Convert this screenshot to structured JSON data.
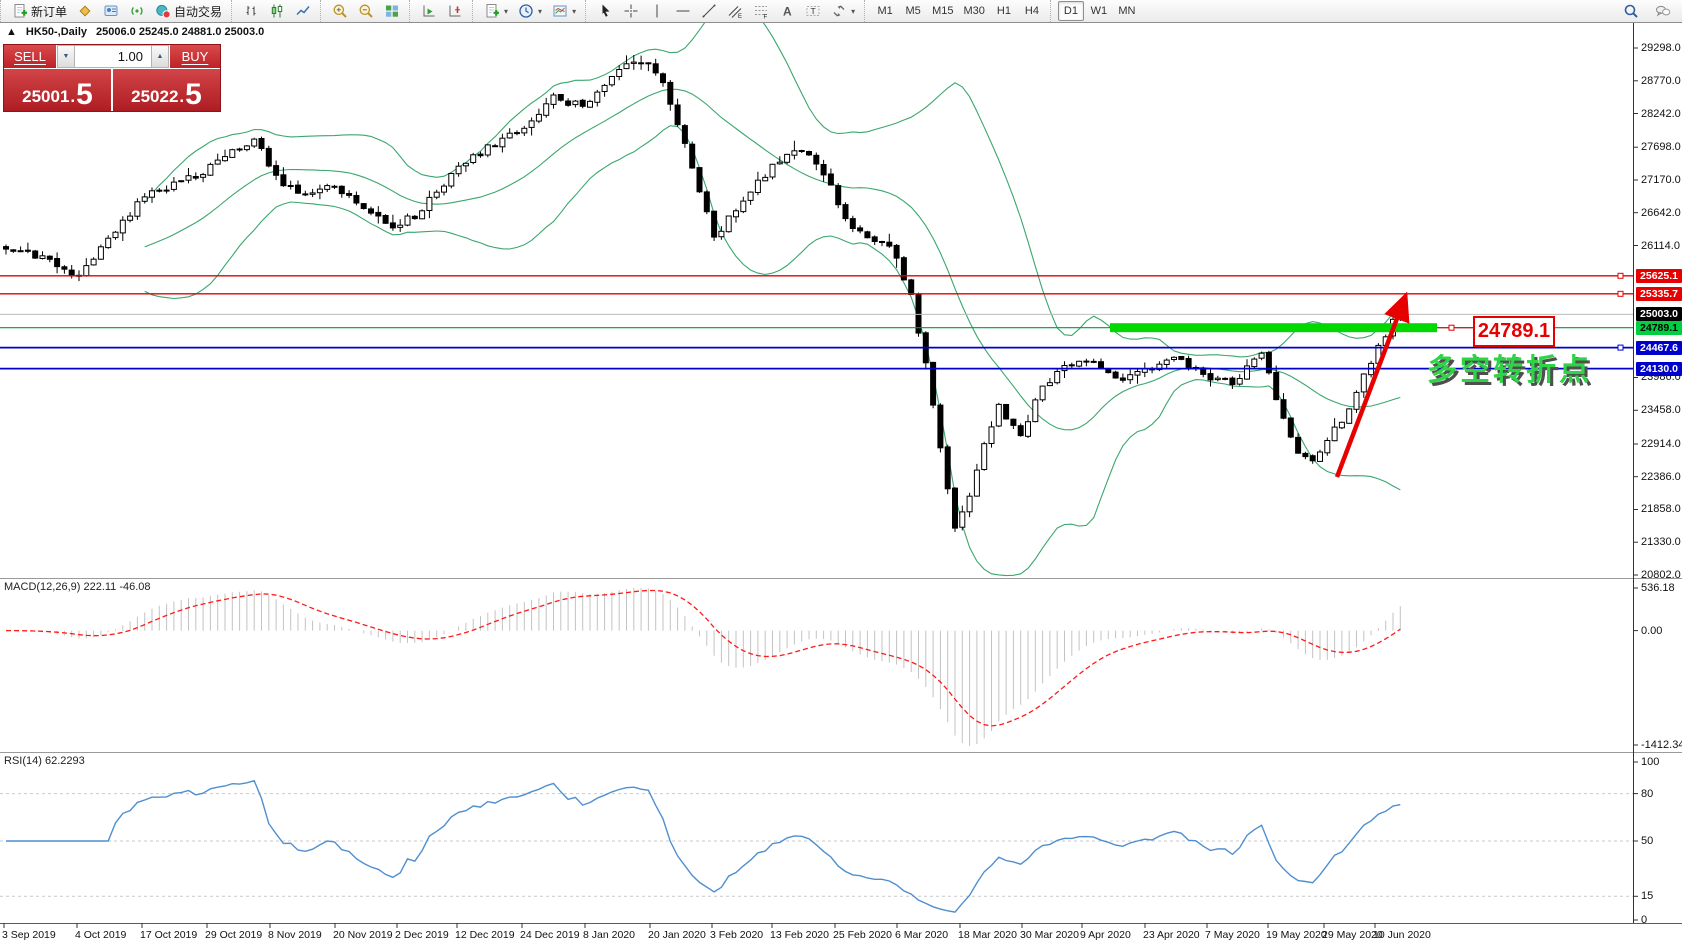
{
  "toolbar": {
    "groups": [
      {
        "items": [
          {
            "name": "new-order",
            "icon": "doc-plus",
            "label": "新订单"
          },
          {
            "name": "market-watch",
            "icon": "market"
          },
          {
            "name": "data-window",
            "icon": "terminal"
          },
          {
            "name": "signals",
            "icon": "signals"
          },
          {
            "name": "auto-trading",
            "icon": "autotrade",
            "label": "自动交易"
          }
        ]
      },
      {
        "items": [
          {
            "name": "bar-chart-mode",
            "icon": "bars"
          },
          {
            "name": "candlestick-mode",
            "icon": "candles"
          },
          {
            "name": "line-chart-mode",
            "icon": "linechart"
          }
        ]
      },
      {
        "items": [
          {
            "name": "zoom-in",
            "icon": "zoom-in"
          },
          {
            "name": "zoom-out",
            "icon": "zoom-out"
          },
          {
            "name": "tile-windows",
            "icon": "tile"
          }
        ]
      },
      {
        "items": [
          {
            "name": "auto-scroll",
            "icon": "autoscroll"
          },
          {
            "name": "chart-shift",
            "icon": "chartshift"
          }
        ]
      },
      {
        "items": [
          {
            "name": "new-chart",
            "icon": "doc-plus",
            "arrow": true
          },
          {
            "name": "chart-period",
            "icon": "clock",
            "arrow": true
          },
          {
            "name": "chart-template",
            "icon": "template",
            "arrow": true
          }
        ]
      },
      {
        "items": [
          {
            "name": "cursor-tool",
            "icon": "cursor"
          },
          {
            "name": "crosshair-tool",
            "icon": "crosshair"
          },
          {
            "name": "vertical-line-tool",
            "icon": "vline"
          },
          {
            "name": "horizontal-line-tool",
            "icon": "hline"
          },
          {
            "name": "trendline-tool",
            "icon": "trendline"
          },
          {
            "name": "channel-tool",
            "icon": "channel"
          },
          {
            "name": "fibonacci-tool",
            "icon": "fibo"
          },
          {
            "name": "text-tool",
            "icon": "textA"
          },
          {
            "name": "label-tool",
            "icon": "labelT"
          },
          {
            "name": "arrows-tool",
            "icon": "arrows",
            "arrow": true
          }
        ]
      }
    ],
    "timeframes": [
      "M1",
      "M5",
      "M15",
      "M30",
      "H1",
      "H4",
      "D1",
      "W1",
      "MN"
    ],
    "active_timeframe": "D1",
    "right_buttons": [
      {
        "name": "search",
        "icon": "search"
      },
      {
        "name": "chat",
        "icon": "chat"
      }
    ]
  },
  "chart": {
    "collapse_marker": "▲",
    "title": "HK50-,Daily",
    "ohlc": "25006.0 25245.0 24881.0 25003.0",
    "price_ticks": [
      29298,
      28770,
      28242,
      27698,
      27170,
      26642,
      26114,
      23986,
      23458,
      22914,
      22386,
      21858,
      21330,
      20802
    ],
    "levels": [
      {
        "value": 25625.1,
        "label": "25625.1",
        "role": "resistance",
        "line_color": "#e60000",
        "chip_bg": "#e60000",
        "chip_fg": "#ffffff",
        "width": 1.4,
        "handle": true
      },
      {
        "value": 25335.7,
        "label": "25335.7",
        "role": "resistance",
        "line_color": "#e60000",
        "chip_bg": "#e60000",
        "chip_fg": "#ffffff",
        "width": 1.4,
        "handle": true
      },
      {
        "value": 25003.0,
        "label": "25003.0",
        "role": "current-price",
        "line_color": "#bbbbbb",
        "chip_bg": "#000000",
        "chip_fg": "#ffffff",
        "width": 1,
        "handle": false
      },
      {
        "value": 24789.1,
        "label": "24789.1",
        "role": "pivot",
        "line_color": "#009944",
        "chip_bg": "#00cf3f",
        "chip_fg": "#000000",
        "width": 1.2,
        "handle": false
      },
      {
        "value": 24467.6,
        "label": "24467.6",
        "role": "support",
        "line_color": "#0000cc",
        "chip_bg": "#0000cc",
        "chip_fg": "#ffffff",
        "width": 1.8,
        "handle": true
      },
      {
        "value": 24130.0,
        "label": "24130.0",
        "role": "support",
        "line_color": "#0000cc",
        "chip_bg": "#0000cc",
        "chip_fg": "#ffffff",
        "width": 1.8,
        "handle": false
      }
    ],
    "dates": [
      "3 Sep 2019",
      "4 Oct 2019",
      "17 Oct 2019",
      "29 Oct 2019",
      "8 Nov 2019",
      "20 Nov 2019",
      "2 Dec 2019",
      "12 Dec 2019",
      "24 Dec 2019",
      "8 Jan 2020",
      "20 Jan 2020",
      "3 Feb 2020",
      "13 Feb 2020",
      "25 Feb 2020",
      "6 Mar 2020",
      "18 Mar 2020",
      "30 Mar 2020",
      "9 Apr 2020",
      "23 Apr 2020",
      "7 May 2020",
      "19 May 2020",
      "29 May 2020",
      "10 Jun 2020"
    ],
    "annotation_price": "24789.1",
    "annotation_text": "多空转折点"
  },
  "trade_panel": {
    "sell_label": "SELL",
    "buy_label": "BUY",
    "volume": "1.00",
    "sell_price_main": "25001",
    "sell_price_frac": "5",
    "buy_price_main": "25022",
    "buy_price_frac": "5",
    "decimal": "."
  },
  "macd": {
    "label": "MACD(12,26,9) 222.11 -46.08",
    "axis_labels": [
      "536.18",
      "0.00",
      "-1412.34"
    ],
    "axis_values": [
      536.18,
      0,
      -1412.34
    ]
  },
  "rsi": {
    "label": "RSI(14) 62.2293",
    "axis_labels": [
      "100",
      "80",
      "50",
      "15",
      "0"
    ],
    "axis_values": [
      100,
      80,
      50,
      15,
      0
    ],
    "level_lines": [
      80,
      50,
      15
    ]
  },
  "chart_data": {
    "type": "candlestick",
    "symbol": "HK50",
    "timeframe": "Daily",
    "current_ohlc": {
      "open": 25006.0,
      "high": 25245.0,
      "low": 24881.0,
      "close": 25003.0
    },
    "visible_price_range": [
      20802,
      29298
    ],
    "x_range": [
      "3 Sep 2019",
      "10 Jun 2020"
    ],
    "legend_position": "none",
    "grid": false,
    "indicators": [
      {
        "name": "Bollinger Bands",
        "color": "#3aa76d"
      },
      {
        "name": "MACD",
        "params": [
          12,
          26,
          9
        ],
        "values": [
          222.11,
          -46.08
        ],
        "axis": [
          536.18,
          0,
          -1412.34
        ]
      },
      {
        "name": "RSI",
        "params": [
          14
        ],
        "value": 62.2293,
        "levels": [
          80,
          50,
          15
        ]
      }
    ],
    "horizontal_levels": [
      25625.1,
      25335.7,
      25003.0,
      24789.1,
      24467.6,
      24130.0
    ],
    "price_path_anchors": [
      [
        0,
        26100
      ],
      [
        5,
        25900
      ],
      [
        10,
        25600
      ],
      [
        14,
        26250
      ],
      [
        19,
        26900
      ],
      [
        23,
        27100
      ],
      [
        27,
        27300
      ],
      [
        31,
        27600
      ],
      [
        34,
        27850
      ],
      [
        37,
        27200
      ],
      [
        40,
        26950
      ],
      [
        45,
        27100
      ],
      [
        48,
        26800
      ],
      [
        53,
        26400
      ],
      [
        56,
        26600
      ],
      [
        62,
        27350
      ],
      [
        66,
        27700
      ],
      [
        71,
        28050
      ],
      [
        75,
        28500
      ],
      [
        79,
        28350
      ],
      [
        82,
        28750
      ],
      [
        85,
        29000
      ],
      [
        88,
        29050
      ],
      [
        90,
        28700
      ],
      [
        93,
        27800
      ],
      [
        97,
        26250
      ],
      [
        100,
        26700
      ],
      [
        105,
        27400
      ],
      [
        108,
        27650
      ],
      [
        111,
        27450
      ],
      [
        113,
        27050
      ],
      [
        116,
        26350
      ],
      [
        119,
        26200
      ],
      [
        121,
        26150
      ],
      [
        124,
        25300
      ],
      [
        126,
        24200
      ],
      [
        128,
        22800
      ],
      [
        130,
        21600
      ],
      [
        132,
        22100
      ],
      [
        134,
        22900
      ],
      [
        136,
        23500
      ],
      [
        139,
        23100
      ],
      [
        142,
        23800
      ],
      [
        145,
        24150
      ],
      [
        148,
        24300
      ],
      [
        152,
        23950
      ],
      [
        156,
        24100
      ],
      [
        160,
        24350
      ],
      [
        164,
        24000
      ],
      [
        168,
        23900
      ],
      [
        172,
        24350
      ],
      [
        175,
        23350
      ],
      [
        177,
        22750
      ],
      [
        179,
        22600
      ],
      [
        181,
        23000
      ],
      [
        184,
        23450
      ],
      [
        186,
        24000
      ],
      [
        188,
        24500
      ],
      [
        190,
        24900
      ],
      [
        191,
        25003
      ]
    ]
  }
}
